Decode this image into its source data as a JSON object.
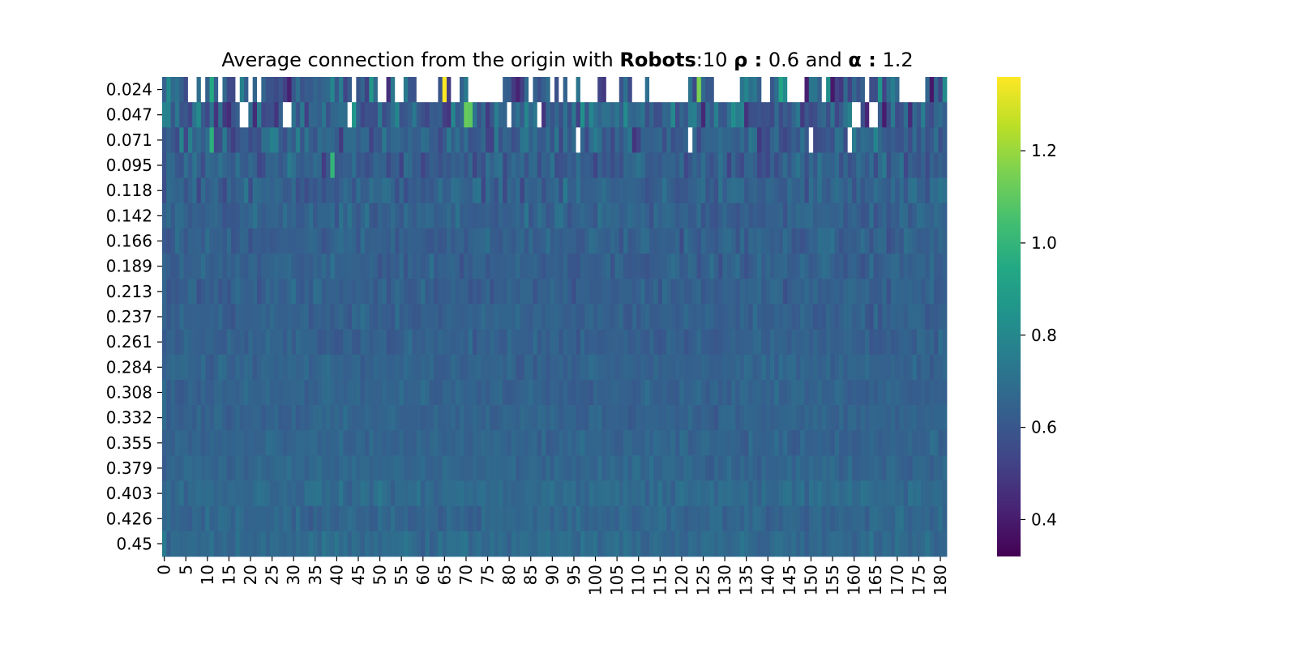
{
  "chart_data": {
    "type": "heatmap",
    "title": {
      "prefix": "Average connection from the origin with ",
      "robots_label": "Robots",
      "robots_value": ":10 ",
      "rho_label": "ρ :",
      "rho_value": " 0.6 and ",
      "alpha_label": "α :",
      "alpha_value": " 1.2"
    },
    "xlabel": "",
    "ylabel": "",
    "y_categories": [
      "0.024",
      "0.047",
      "0.071",
      "0.095",
      "0.118",
      "0.142",
      "0.166",
      "0.189",
      "0.213",
      "0.237",
      "0.261",
      "0.284",
      "0.308",
      "0.332",
      "0.355",
      "0.379",
      "0.403",
      "0.426",
      "0.45"
    ],
    "x_count": 182,
    "x_tick_labels": [
      "0",
      "5",
      "10",
      "15",
      "20",
      "25",
      "30",
      "35",
      "40",
      "45",
      "50",
      "55",
      "60",
      "65",
      "70",
      "75",
      "80",
      "85",
      "90",
      "95",
      "100",
      "105",
      "110",
      "115",
      "120",
      "125",
      "130",
      "135",
      "140",
      "145",
      "150",
      "155",
      "160",
      "165",
      "170",
      "175",
      "180"
    ],
    "x_tick_step": 5,
    "colormap": "viridis",
    "colorbar": {
      "vmin": 0.32,
      "vmax": 1.36,
      "ticks": [
        "0.4",
        "0.6",
        "0.8",
        "1.0",
        "1.2"
      ]
    },
    "row_means": [
      0.62,
      0.64,
      0.64,
      0.63,
      0.64,
      0.64,
      0.64,
      0.64,
      0.64,
      0.64,
      0.64,
      0.65,
      0.65,
      0.65,
      0.65,
      0.66,
      0.68,
      0.66,
      0.68
    ],
    "row_spread": [
      0.16,
      0.12,
      0.09,
      0.07,
      0.06,
      0.05,
      0.045,
      0.04,
      0.04,
      0.035,
      0.035,
      0.03,
      0.03,
      0.03,
      0.03,
      0.03,
      0.035,
      0.035,
      0.04
    ],
    "highlights": [
      {
        "row": 0,
        "col": 65,
        "value": 1.36
      },
      {
        "row": 0,
        "col": 124,
        "value": 1.15
      },
      {
        "row": 1,
        "col": 70,
        "value": 1.12
      },
      {
        "row": 1,
        "col": 71,
        "value": 1.1
      },
      {
        "row": 2,
        "col": 11,
        "value": 0.98
      },
      {
        "row": 3,
        "col": 39,
        "value": 1.0
      },
      {
        "row": 0,
        "col": 11,
        "value": 0.95
      },
      {
        "row": 0,
        "col": 143,
        "value": 0.92
      }
    ],
    "missing_cells": [
      [
        0,
        6
      ],
      [
        0,
        7
      ],
      [
        0,
        9
      ],
      [
        0,
        13
      ],
      [
        0,
        17
      ],
      [
        0,
        20
      ],
      [
        0,
        22
      ],
      [
        0,
        44
      ],
      [
        0,
        50
      ],
      [
        0,
        51
      ],
      [
        0,
        54
      ],
      [
        0,
        55
      ],
      [
        0,
        59
      ],
      [
        0,
        60
      ],
      [
        0,
        61
      ],
      [
        0,
        62
      ],
      [
        0,
        63
      ],
      [
        0,
        67
      ],
      [
        0,
        68
      ],
      [
        0,
        71
      ],
      [
        0,
        72
      ],
      [
        0,
        73
      ],
      [
        0,
        74
      ],
      [
        0,
        75
      ],
      [
        0,
        76
      ],
      [
        0,
        77
      ],
      [
        0,
        78
      ],
      [
        0,
        85
      ],
      [
        0,
        90
      ],
      [
        0,
        92
      ],
      [
        0,
        94
      ],
      [
        0,
        95
      ],
      [
        0,
        97
      ],
      [
        0,
        98
      ],
      [
        0,
        99
      ],
      [
        0,
        100
      ],
      [
        0,
        103
      ],
      [
        0,
        104
      ],
      [
        0,
        105
      ],
      [
        0,
        109
      ],
      [
        0,
        110
      ],
      [
        0,
        111
      ],
      [
        0,
        113
      ],
      [
        0,
        114
      ],
      [
        0,
        115
      ],
      [
        0,
        116
      ],
      [
        0,
        117
      ],
      [
        0,
        118
      ],
      [
        0,
        119
      ],
      [
        0,
        120
      ],
      [
        0,
        121
      ],
      [
        0,
        128
      ],
      [
        0,
        129
      ],
      [
        0,
        130
      ],
      [
        0,
        131
      ],
      [
        0,
        132
      ],
      [
        0,
        133
      ],
      [
        0,
        139
      ],
      [
        0,
        140
      ],
      [
        0,
        145
      ],
      [
        0,
        146
      ],
      [
        0,
        147
      ],
      [
        0,
        148
      ],
      [
        0,
        153
      ],
      [
        0,
        163
      ],
      [
        0,
        171
      ],
      [
        0,
        172
      ],
      [
        0,
        173
      ],
      [
        0,
        174
      ],
      [
        0,
        175
      ],
      [
        0,
        176
      ],
      [
        1,
        18
      ],
      [
        1,
        19
      ],
      [
        1,
        28
      ],
      [
        1,
        29
      ],
      [
        1,
        43
      ],
      [
        1,
        80
      ],
      [
        1,
        87
      ],
      [
        1,
        160
      ],
      [
        1,
        161
      ],
      [
        1,
        164
      ],
      [
        1,
        165
      ],
      [
        2,
        96
      ],
      [
        2,
        122
      ],
      [
        2,
        150
      ],
      [
        2,
        159
      ]
    ]
  }
}
